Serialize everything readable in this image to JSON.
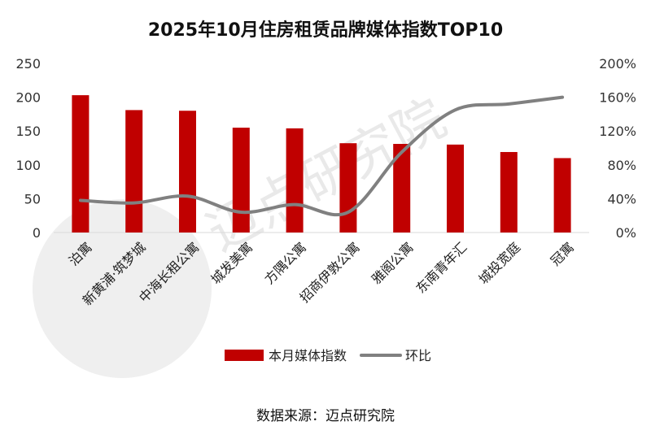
{
  "chart_data": {
    "type": "bar",
    "title": "2025年10月住房租赁品牌媒体指数TOP10",
    "categories": [
      "泊寓",
      "新黄浦·筑梦城",
      "中海长租公寓",
      "城发美寓",
      "方隅公寓",
      "招商伊敦公寓",
      "雅阁公寓",
      "东南青年汇",
      "城投宽庭",
      "冠寓"
    ],
    "series": [
      {
        "name": "本月媒体指数",
        "kind": "bar",
        "axis": "left",
        "color": "#c00000",
        "values": [
          203,
          181,
          180,
          155,
          154,
          132,
          131,
          130,
          119,
          110
        ]
      },
      {
        "name": "环比",
        "kind": "line",
        "axis": "right",
        "color": "#808080",
        "values": [
          38,
          35,
          43,
          24,
          33,
          24,
          95,
          145,
          152,
          160
        ]
      }
    ],
    "ylim_left": [
      0,
      250
    ],
    "yticks_left": [
      "0",
      "50",
      "100",
      "150",
      "200",
      "250"
    ],
    "ylim_right": [
      0,
      200
    ],
    "yticks_right": [
      "0%",
      "40%",
      "80%",
      "120%",
      "160%",
      "200%"
    ],
    "legend_position": "bottom-center",
    "source": "数据来源：迈点研究院",
    "watermark": "迈点研究院"
  }
}
